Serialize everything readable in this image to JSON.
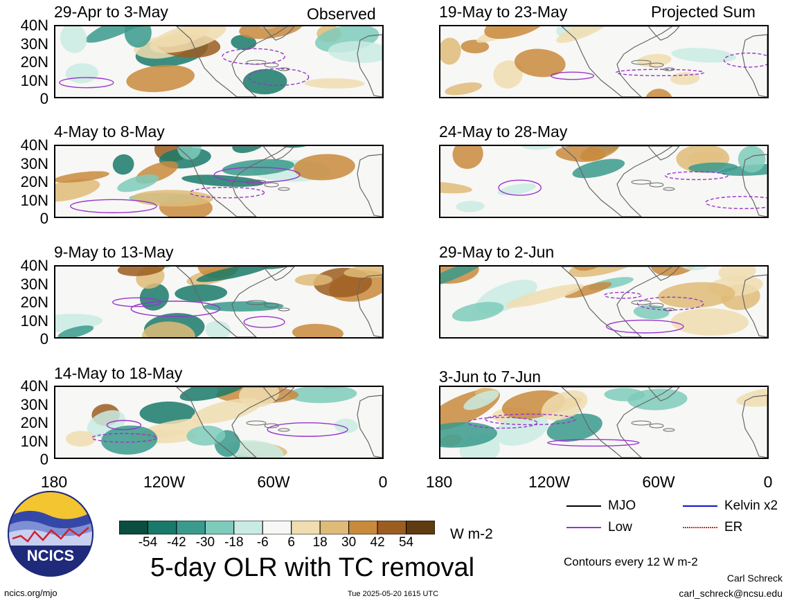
{
  "left_header": "Observed",
  "right_header": "Projected Sum",
  "panels": [
    {
      "id": "p1",
      "title": "29-Apr to 3-May",
      "col": 0,
      "row": 0
    },
    {
      "id": "p2",
      "title": "4-May to 8-May",
      "col": 0,
      "row": 1
    },
    {
      "id": "p3",
      "title": "9-May to 13-May",
      "col": 0,
      "row": 2
    },
    {
      "id": "p4",
      "title": "14-May to 18-May",
      "col": 0,
      "row": 3
    },
    {
      "id": "p5",
      "title": "19-May to 23-May",
      "col": 1,
      "row": 0
    },
    {
      "id": "p6",
      "title": "24-May to 28-May",
      "col": 1,
      "row": 1
    },
    {
      "id": "p7",
      "title": "29-May to 2-Jun",
      "col": 1,
      "row": 2
    },
    {
      "id": "p8",
      "title": "3-Jun to 7-Jun",
      "col": 1,
      "row": 3
    }
  ],
  "lat_labels": [
    "40N",
    "30N",
    "20N",
    "10N",
    "0"
  ],
  "lon_labels": [
    "180",
    "120W",
    "60W",
    "0"
  ],
  "colorbar": {
    "colors": [
      "#0b4d3f",
      "#1a7a6a",
      "#3a9a8c",
      "#7ecbbb",
      "#c9ebe3",
      "#f7f7f5",
      "#f0ddb0",
      "#dfbb78",
      "#c98a3c",
      "#9c5d20",
      "#603a10"
    ],
    "labels": [
      "-54",
      "-42",
      "-30",
      "-18",
      "-6",
      "6",
      "18",
      "30",
      "42",
      "54"
    ],
    "unit": "W m-2"
  },
  "legend": {
    "items": [
      {
        "label": "MJO",
        "color": "#000000"
      },
      {
        "label": "Kelvin x2",
        "color": "#1010cc"
      },
      {
        "label": "Low",
        "color": "#9933cc"
      },
      {
        "label": "ER",
        "color": "#dd2222"
      }
    ],
    "contours_note": "Contours every 12 W m-2"
  },
  "main_title": "5-day OLR with TC removal",
  "logo_text": "NCICS",
  "footer_left": "ncics.org/mjo",
  "footer_center": "Tue 2025-05-20 1615 UTC",
  "author_name": "Carl Schreck",
  "author_email": "carl_schreck@ncsu.edu"
}
